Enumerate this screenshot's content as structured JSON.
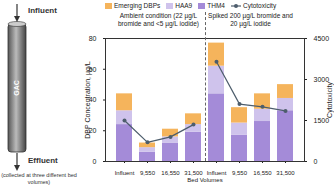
{
  "chart_data": {
    "type": "bar",
    "stacked": true,
    "categories": [
      "Influent",
      "9,550",
      "16,550",
      "31,500",
      "Influent",
      "9,550",
      "16,550",
      "31,500"
    ],
    "group": [
      "Ambient condition (22 µg/L bromide and <5 µg/L iodide)",
      "Ambient condition (22 µg/L bromide and <5 µg/L iodide)",
      "Ambient condition (22 µg/L bromide and <5 µg/L iodide)",
      "Ambient condition (22 µg/L bromide and <5 µg/L iodide)",
      "Spiked 200 µg/L bromide and 20 µg/L iodide",
      "Spiked 200 µg/L bromide and 20 µg/L iodide",
      "Spiked 200 µg/L bromide and 20 µg/L iodide",
      "Spiked 200 µg/L bromide and 20 µg/L iodide"
    ],
    "x_label": "Bed Volumes",
    "y_label": "DBP Concentration, µg/L",
    "y2_label": "Cytotoxicity",
    "ylim": [
      0,
      80
    ],
    "yticks": [
      0,
      20,
      40,
      60,
      80
    ],
    "y2lim": [
      0,
      4500
    ],
    "y2ticks": [
      0,
      1500,
      3000,
      4500
    ],
    "legend": "top-left",
    "series": [
      {
        "name": "THM4",
        "color": "#a48bd8",
        "values": [
          24,
          6,
          12,
          19,
          44,
          17,
          26,
          33
        ]
      },
      {
        "name": "HAA9",
        "color": "#cfc3ec",
        "values": [
          9,
          3,
          4,
          5,
          18,
          8,
          8,
          8
        ]
      },
      {
        "name": "Emerging DBPs",
        "color": "#f5b45c",
        "values": [
          11,
          3,
          5,
          7,
          15,
          10,
          10,
          9
        ]
      },
      {
        "name": "Cytotoxicity",
        "type": "line",
        "axis": "y2",
        "color": "#4d5d6c",
        "marker": "circle",
        "values": [
          1500,
          700,
          900,
          1350,
          3650,
          2100,
          2000,
          1850
        ]
      }
    ]
  },
  "diagram": {
    "top_label": "Influent",
    "column_label": "GAC",
    "bottom_label": "Effluent",
    "note": "(collected at three different bed volumes)"
  }
}
